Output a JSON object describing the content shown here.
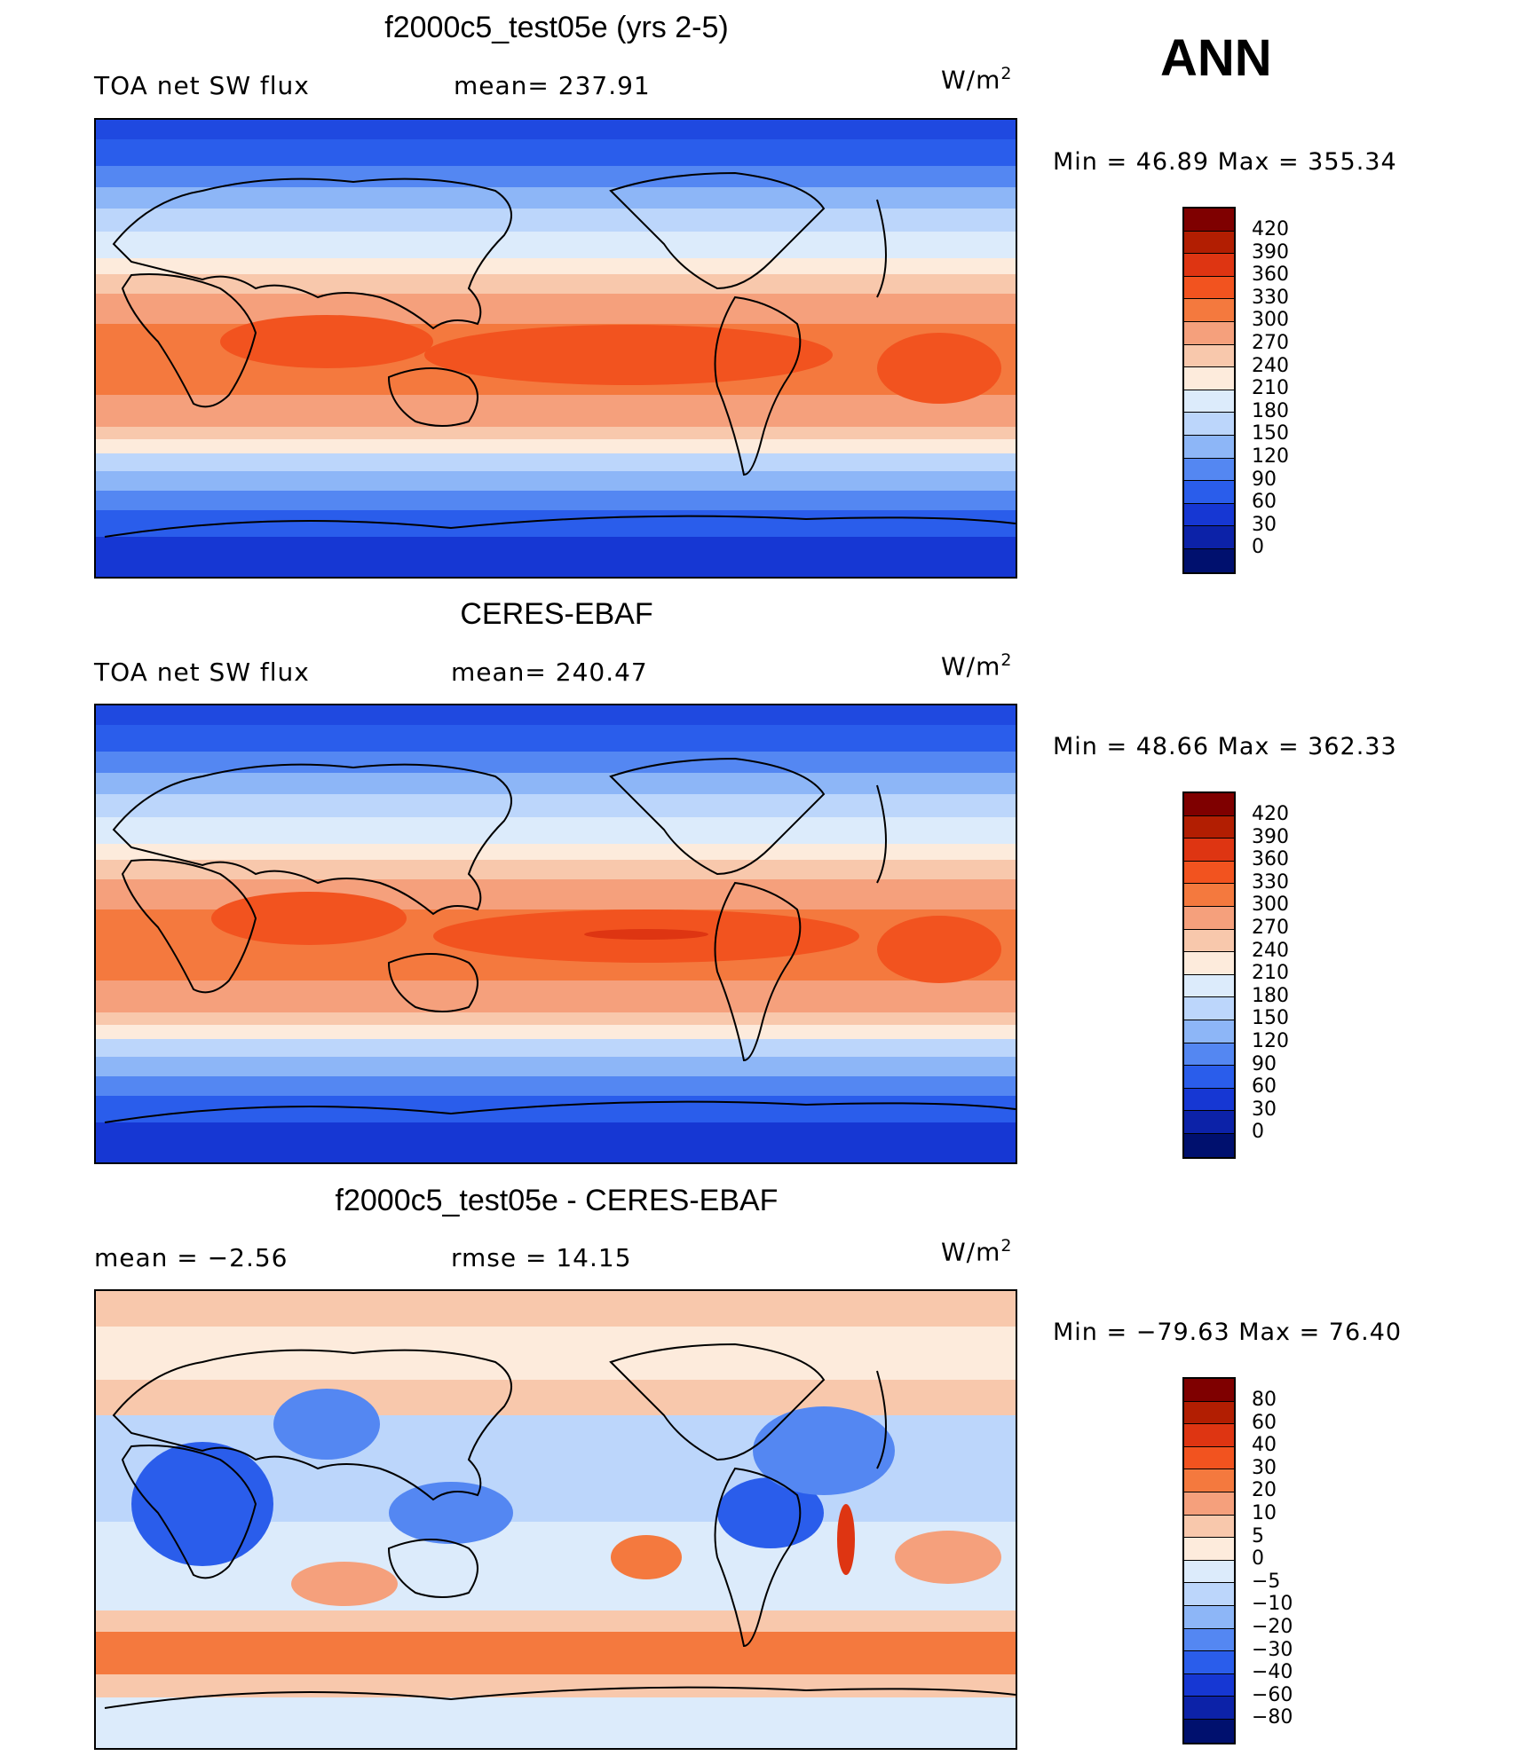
{
  "season": "ANN",
  "units": "W/m",
  "units_exp": "2",
  "panels": [
    {
      "title": "f2000c5_test05e (yrs 2-5)",
      "left_label": "TOA net SW flux",
      "center_label": "mean= 237.91",
      "minmax": "Min =   46.89 Max = 355.34",
      "levels": [
        "420",
        "390",
        "360",
        "330",
        "300",
        "270",
        "240",
        "210",
        "180",
        "150",
        "120",
        "90",
        "60",
        "30",
        "0"
      ]
    },
    {
      "title": "CERES-EBAF",
      "left_label": "TOA net SW flux",
      "center_label": "mean= 240.47",
      "minmax": "Min =   48.66 Max = 362.33",
      "levels": [
        "420",
        "390",
        "360",
        "330",
        "300",
        "270",
        "240",
        "210",
        "180",
        "150",
        "120",
        "90",
        "60",
        "30",
        "0"
      ]
    },
    {
      "title": "f2000c5_test05e - CERES-EBAF",
      "left_label": "mean =   −2.56",
      "center_label": "rmse =   14.15",
      "minmax": "Min = −79.63 Max =   76.40",
      "levels": [
        "80",
        "60",
        "40",
        "30",
        "20",
        "10",
        "5",
        "0",
        "−5",
        "−10",
        "−20",
        "−30",
        "−40",
        "−60",
        "−80"
      ]
    }
  ],
  "colors": {
    "colorbar": [
      "#7f0000",
      "#b21e02",
      "#de3512",
      "#f2531f",
      "#f4793e",
      "#f5a07c",
      "#f8c8ac",
      "#fdebdc",
      "#dcebfb",
      "#bcd6fb",
      "#8db6f7",
      "#5487f2",
      "#2a5deb",
      "#1637d3",
      "#0c22a8",
      "#00106e"
    ],
    "ocean_deep_blue": "#1f49e0",
    "warm_orange": "#f0612e",
    "coastline": "#000000"
  }
}
